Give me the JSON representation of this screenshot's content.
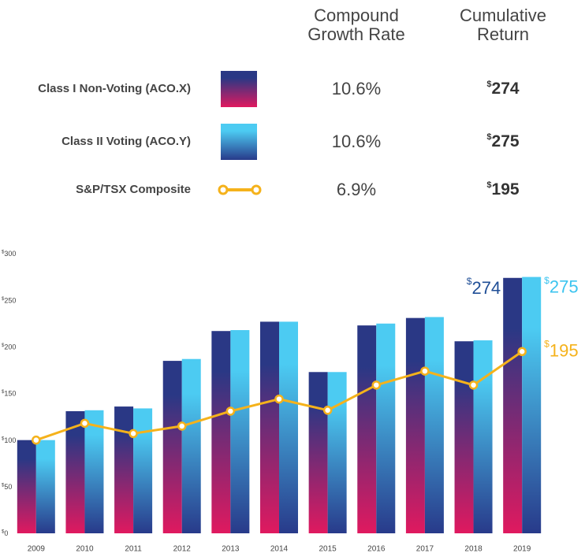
{
  "chart_data": {
    "type": "bar",
    "legend_headers": [
      "Compound Growth Rate",
      "Cumulative Return"
    ],
    "categories": [
      "2009",
      "2010",
      "2011",
      "2012",
      "2013",
      "2014",
      "2015",
      "2016",
      "2017",
      "2018",
      "2019"
    ],
    "series": [
      {
        "name": "Class I Non-Voting (ACO.X)",
        "type": "bar",
        "color": "#1f4e96",
        "gradient": [
          "#2a3885",
          "#e0195f"
        ],
        "growth_rate": "10.6%",
        "cumulative_return": "$274",
        "values": [
          100,
          131,
          136,
          185,
          217,
          227,
          173,
          223,
          231,
          206,
          274
        ],
        "value_labels": [
          null,
          null,
          null,
          null,
          null,
          null,
          null,
          null,
          null,
          null,
          "$274"
        ]
      },
      {
        "name": "Class II Voting (ACO.Y)",
        "type": "bar",
        "color": "#3cc4ef",
        "gradient": [
          "#4ccbf2",
          "#283a8a"
        ],
        "growth_rate": "10.6%",
        "cumulative_return": "$275",
        "values": [
          100,
          132,
          134,
          187,
          218,
          227,
          173,
          225,
          232,
          207,
          275
        ],
        "value_labels": [
          null,
          null,
          null,
          null,
          null,
          null,
          null,
          null,
          null,
          null,
          "$275"
        ]
      },
      {
        "name": "S&P/TSX Composite",
        "type": "line",
        "color": "#f5b21b",
        "growth_rate": "6.9%",
        "cumulative_return": "$195",
        "values": [
          100,
          118,
          107,
          115,
          131,
          144,
          132,
          159,
          174,
          159,
          195
        ],
        "value_labels": [
          null,
          null,
          null,
          null,
          null,
          null,
          null,
          null,
          null,
          null,
          "$195"
        ]
      }
    ],
    "ylim": [
      0,
      300
    ],
    "yticks": [
      {
        "value": 0,
        "label": "$0"
      },
      {
        "value": 50,
        "label": "$50"
      },
      {
        "value": 100,
        "label": "$100"
      },
      {
        "value": 150,
        "label": "$150"
      },
      {
        "value": 200,
        "label": "$200"
      },
      {
        "value": 250,
        "label": "$250"
      },
      {
        "value": 300,
        "label": "$300"
      }
    ],
    "grid": false
  }
}
